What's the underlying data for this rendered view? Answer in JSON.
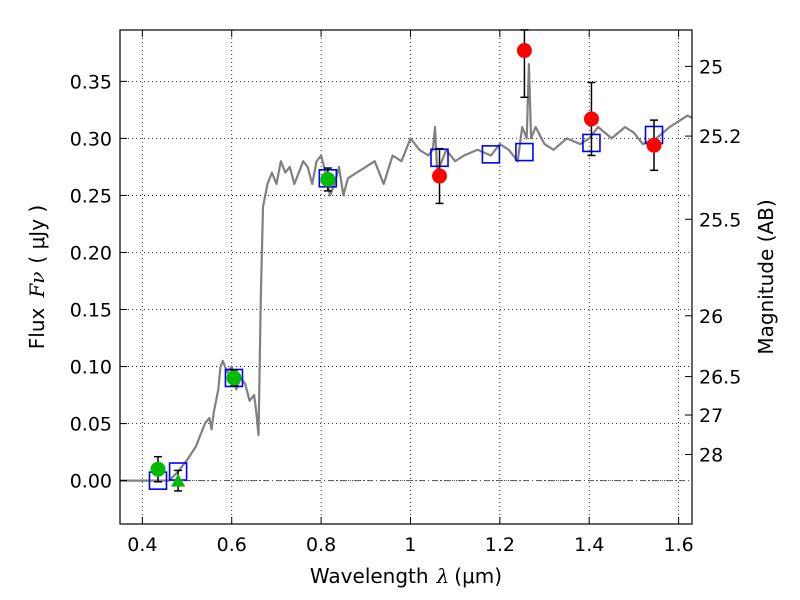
{
  "chart_data": {
    "type": "scatter",
    "xlabel": "Wavelength",
    "xlabel_var": "λ",
    "xlabel_unit": "(μm)",
    "ylabel": "Flux",
    "ylabel_var": "Fν",
    "ylabel_unit": "( μJy )",
    "y2label": "Magnitude (AB)",
    "xlim": [
      0.35,
      1.63
    ],
    "ylim": [
      -0.038,
      0.395
    ],
    "grid": true,
    "x_ticks": [
      0.4,
      0.6,
      0.8,
      1.0,
      1.2,
      1.4,
      1.6
    ],
    "x_tick_labels": [
      "0.4",
      "0.6",
      "0.8",
      "1",
      "1.2",
      "1.4",
      "1.6"
    ],
    "y_ticks": [
      0.0,
      0.05,
      0.1,
      0.15,
      0.2,
      0.25,
      0.3,
      0.35
    ],
    "y_tick_labels": [
      "0.00",
      "0.05",
      "0.10",
      "0.15",
      "0.20",
      "0.25",
      "0.30",
      "0.35"
    ],
    "mag_ticks": [
      {
        "label": "25",
        "flux": 0.3631
      },
      {
        "label": "25.2",
        "flux": 0.302
      },
      {
        "label": "25.5",
        "flux": 0.2291
      },
      {
        "label": "26",
        "flux": 0.1445
      },
      {
        "label": "26.5",
        "flux": 0.0912
      },
      {
        "label": "27",
        "flux": 0.0575
      },
      {
        "label": "28",
        "flux": 0.0229
      }
    ],
    "zero_line": 0.0,
    "model_sed": {
      "color": "#808080",
      "x": [
        0.35,
        0.46,
        0.48,
        0.5,
        0.52,
        0.53,
        0.54,
        0.55,
        0.555,
        0.56,
        0.57,
        0.575,
        0.58,
        0.585,
        0.59,
        0.6,
        0.61,
        0.62,
        0.63,
        0.64,
        0.65,
        0.655,
        0.66,
        0.665,
        0.67,
        0.68,
        0.69,
        0.7,
        0.71,
        0.72,
        0.73,
        0.74,
        0.75,
        0.76,
        0.77,
        0.78,
        0.79,
        0.8,
        0.81,
        0.82,
        0.83,
        0.84,
        0.85,
        0.86,
        0.88,
        0.9,
        0.92,
        0.94,
        0.96,
        0.98,
        1.0,
        1.02,
        1.04,
        1.05,
        1.055,
        1.06,
        1.07,
        1.08,
        1.1,
        1.12,
        1.15,
        1.18,
        1.2,
        1.22,
        1.24,
        1.25,
        1.26,
        1.265,
        1.27,
        1.28,
        1.3,
        1.32,
        1.35,
        1.38,
        1.4,
        1.42,
        1.45,
        1.48,
        1.5,
        1.52,
        1.55,
        1.58,
        1.6,
        1.62,
        1.63
      ],
      "y": [
        0.0,
        0.0,
        0.008,
        0.018,
        0.03,
        0.04,
        0.05,
        0.055,
        0.045,
        0.06,
        0.08,
        0.1,
        0.105,
        0.1,
        0.095,
        0.1,
        0.08,
        0.09,
        0.085,
        0.07,
        0.075,
        0.06,
        0.04,
        0.16,
        0.24,
        0.26,
        0.27,
        0.26,
        0.28,
        0.27,
        0.275,
        0.26,
        0.27,
        0.28,
        0.275,
        0.26,
        0.28,
        0.285,
        0.27,
        0.25,
        0.26,
        0.275,
        0.25,
        0.265,
        0.27,
        0.275,
        0.28,
        0.26,
        0.285,
        0.28,
        0.3,
        0.29,
        0.285,
        0.29,
        0.31,
        0.27,
        0.28,
        0.29,
        0.28,
        0.285,
        0.29,
        0.285,
        0.295,
        0.29,
        0.28,
        0.31,
        0.3,
        0.365,
        0.3,
        0.31,
        0.295,
        0.29,
        0.3,
        0.295,
        0.3,
        0.31,
        0.3,
        0.31,
        0.305,
        0.295,
        0.3,
        0.31,
        0.315,
        0.32,
        0.318
      ]
    },
    "series": [
      {
        "marker": "open-square",
        "color": "#0000ff",
        "x": [
          0.435,
          0.48,
          0.605,
          0.815,
          1.065,
          1.18,
          1.255,
          1.405,
          1.545
        ],
        "y": [
          0.0,
          0.008,
          0.09,
          0.265,
          0.283,
          0.286,
          0.288,
          0.296,
          0.303
        ]
      },
      {
        "marker": "circle",
        "color": "#00bb00",
        "x": [
          0.435,
          0.605,
          0.815
        ],
        "y": [
          0.01,
          0.09,
          0.264
        ],
        "yerr": [
          0.011,
          0.007,
          0.01
        ]
      },
      {
        "marker": "triangle",
        "color": "#00bb00",
        "x": [
          0.48
        ],
        "y": [
          0.0
        ],
        "yerr": [
          0.009
        ]
      },
      {
        "marker": "circle",
        "color": "#ff0000",
        "x": [
          1.065,
          1.255,
          1.405,
          1.545
        ],
        "y": [
          0.267,
          0.377,
          0.317,
          0.294
        ],
        "yerr": [
          0.024,
          0.041,
          0.032,
          0.022
        ]
      }
    ]
  }
}
